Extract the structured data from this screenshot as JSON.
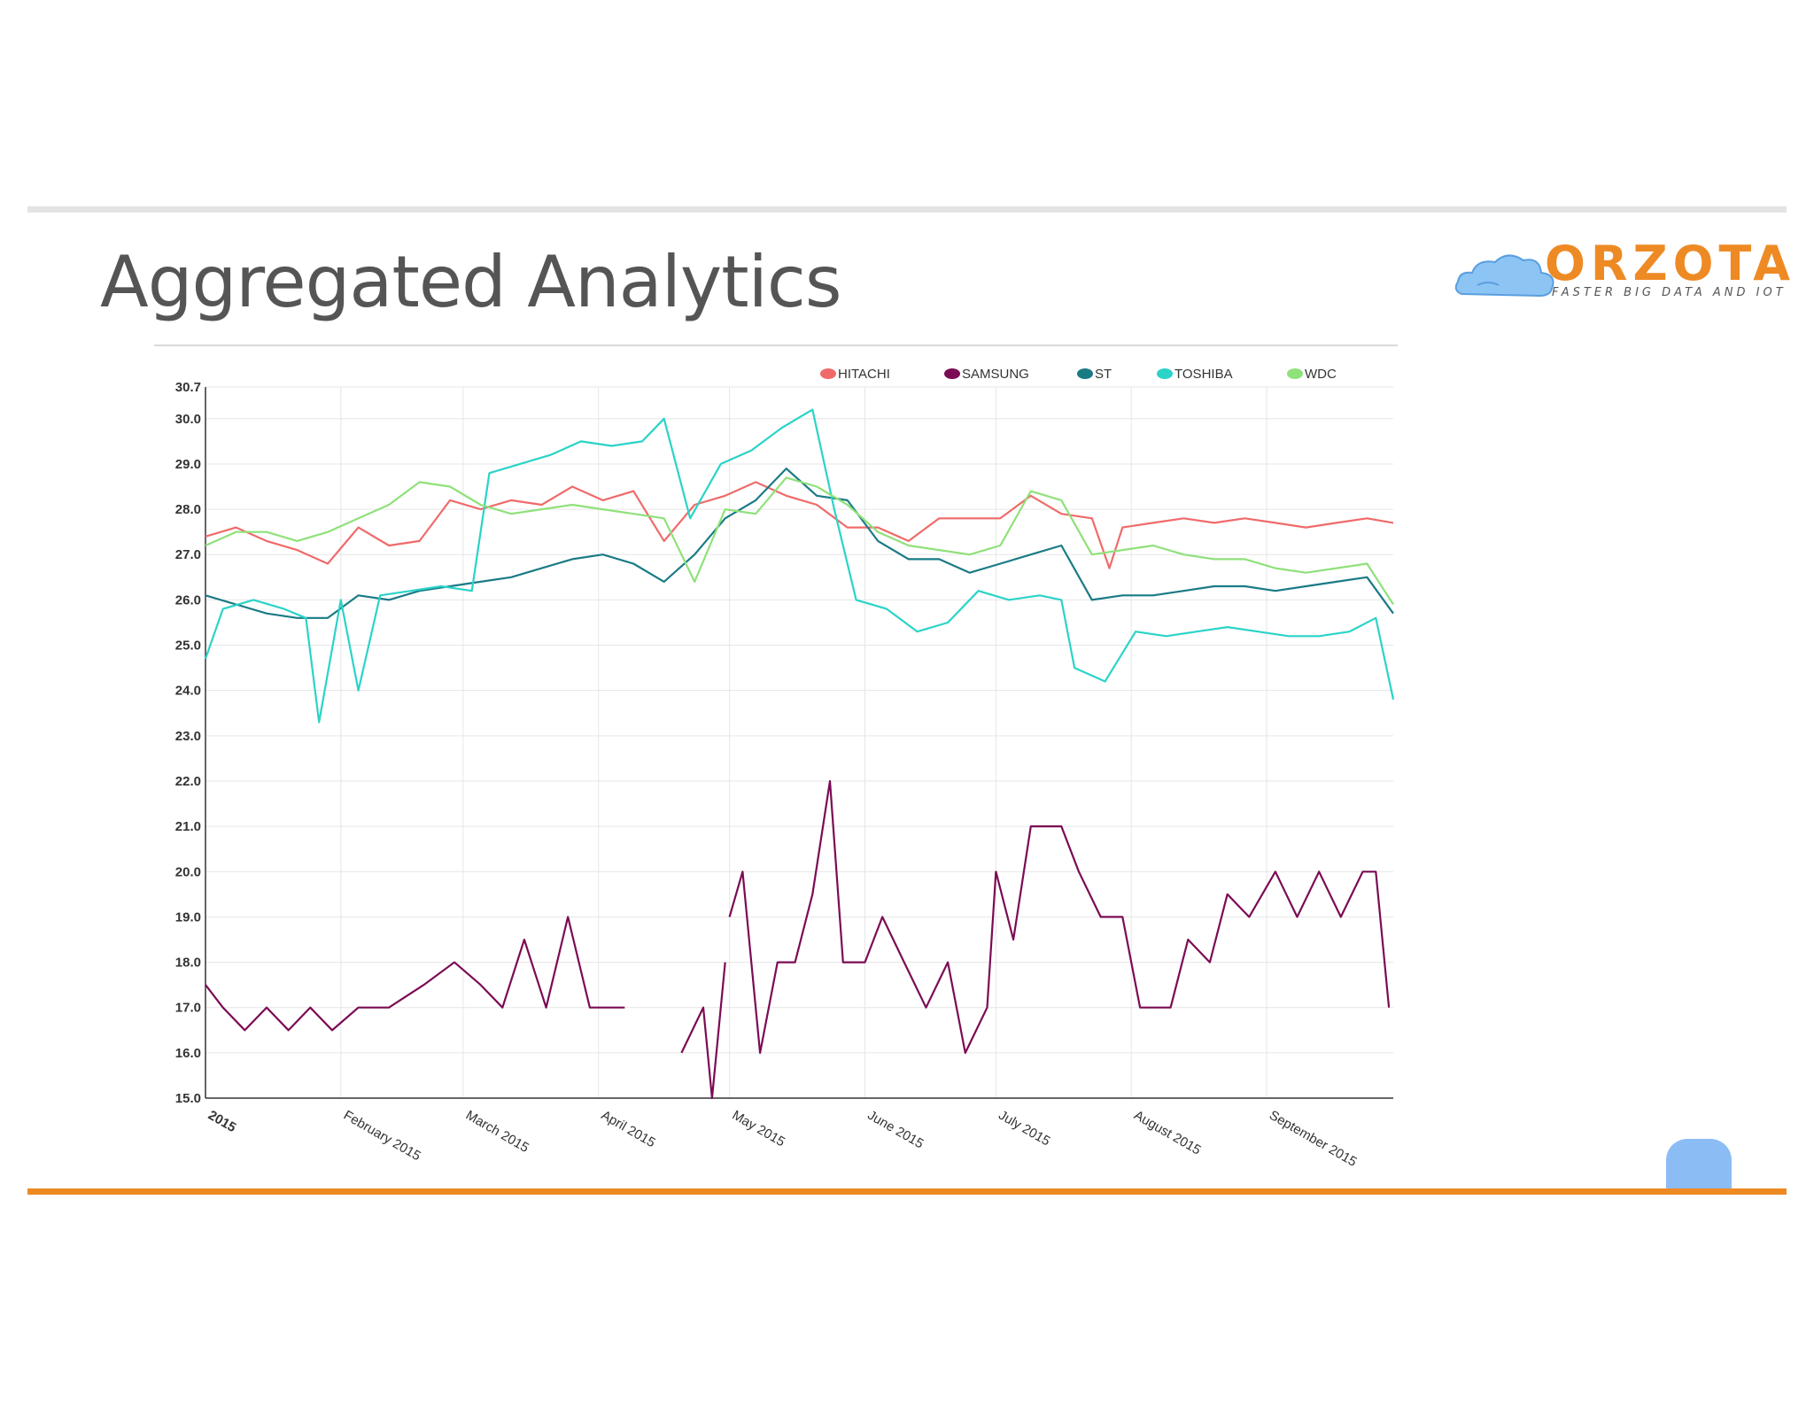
{
  "slide": {
    "title": "Aggregated Analytics",
    "logo": {
      "word": "ORZOTA",
      "tagline": "FASTER BIG DATA AND IOT"
    }
  },
  "colors": {
    "accent_orange": "#ee8a24",
    "rule_gray": "#e3e3e3"
  },
  "chart_data": {
    "type": "line",
    "title": "",
    "xlabel": "",
    "ylabel": "",
    "x_start": "2015-01-01",
    "x_end": "2015-09-30",
    "ylim": [
      15.0,
      30.7
    ],
    "yticks": [
      "15.0",
      "16.0",
      "17.0",
      "18.0",
      "19.0",
      "20.0",
      "21.0",
      "22.0",
      "23.0",
      "24.0",
      "25.0",
      "26.0",
      "27.0",
      "28.0",
      "29.0",
      "30.0",
      "30.7"
    ],
    "xticks": [
      {
        "date": "2015-01-01",
        "label": "2015"
      },
      {
        "date": "2015-02-01",
        "label": "February 2015"
      },
      {
        "date": "2015-03-01",
        "label": "March 2015"
      },
      {
        "date": "2015-04-01",
        "label": "April 2015"
      },
      {
        "date": "2015-05-01",
        "label": "May 2015"
      },
      {
        "date": "2015-06-01",
        "label": "June 2015"
      },
      {
        "date": "2015-07-01",
        "label": "July 2015"
      },
      {
        "date": "2015-08-01",
        "label": "August 2015"
      },
      {
        "date": "2015-09-01",
        "label": "September 2015"
      }
    ],
    "grid": true,
    "legend_position": "top-right",
    "series": [
      {
        "name": "HITACHI",
        "color": "#f06a6a",
        "points": [
          [
            "2015-01-01",
            27.4
          ],
          [
            "2015-01-08",
            27.6
          ],
          [
            "2015-01-15",
            27.3
          ],
          [
            "2015-01-22",
            27.1
          ],
          [
            "2015-01-29",
            26.8
          ],
          [
            "2015-02-05",
            27.6
          ],
          [
            "2015-02-12",
            27.2
          ],
          [
            "2015-02-19",
            27.3
          ],
          [
            "2015-02-26",
            28.2
          ],
          [
            "2015-03-05",
            28.0
          ],
          [
            "2015-03-12",
            28.2
          ],
          [
            "2015-03-19",
            28.1
          ],
          [
            "2015-03-26",
            28.5
          ],
          [
            "2015-04-02",
            28.2
          ],
          [
            "2015-04-09",
            28.4
          ],
          [
            "2015-04-16",
            27.3
          ],
          [
            "2015-04-23",
            28.1
          ],
          [
            "2015-04-30",
            28.3
          ],
          [
            "2015-05-07",
            28.6
          ],
          [
            "2015-05-14",
            28.3
          ],
          [
            "2015-05-21",
            28.1
          ],
          [
            "2015-05-28",
            27.6
          ],
          [
            "2015-06-04",
            27.6
          ],
          [
            "2015-06-11",
            27.3
          ],
          [
            "2015-06-18",
            27.8
          ],
          [
            "2015-06-25",
            27.8
          ],
          [
            "2015-07-02",
            27.8
          ],
          [
            "2015-07-09",
            28.3
          ],
          [
            "2015-07-16",
            27.9
          ],
          [
            "2015-07-23",
            27.8
          ],
          [
            "2015-07-27",
            26.7
          ],
          [
            "2015-07-30",
            27.6
          ],
          [
            "2015-08-06",
            27.7
          ],
          [
            "2015-08-13",
            27.8
          ],
          [
            "2015-08-20",
            27.7
          ],
          [
            "2015-08-27",
            27.8
          ],
          [
            "2015-09-03",
            27.7
          ],
          [
            "2015-09-10",
            27.6
          ],
          [
            "2015-09-17",
            27.7
          ],
          [
            "2015-09-24",
            27.8
          ],
          [
            "2015-09-30",
            27.7
          ]
        ]
      },
      {
        "name": "SAMSUNG",
        "color": "#7b0b54",
        "points": [
          [
            "2015-01-01",
            17.5
          ],
          [
            "2015-01-05",
            17.0
          ],
          [
            "2015-01-10",
            16.5
          ],
          [
            "2015-01-15",
            17.0
          ],
          [
            "2015-01-20",
            16.5
          ],
          [
            "2015-01-25",
            17.0
          ],
          [
            "2015-01-30",
            16.5
          ],
          [
            "2015-02-05",
            17.0
          ],
          [
            "2015-02-12",
            17.0
          ],
          [
            "2015-02-20",
            17.5
          ],
          [
            "2015-02-27",
            18.0
          ],
          [
            "2015-03-05",
            17.5
          ],
          [
            "2015-03-10",
            17.0
          ],
          [
            "2015-03-15",
            18.5
          ],
          [
            "2015-03-20",
            17.0
          ],
          [
            "2015-03-25",
            19.0
          ],
          [
            "2015-03-30",
            17.0
          ],
          [
            "2015-04-07",
            17.0
          ],
          null,
          [
            "2015-04-20",
            16.0
          ],
          [
            "2015-04-25",
            17.0
          ],
          [
            "2015-04-27",
            15.0
          ],
          [
            "2015-04-30",
            18.0
          ],
          null,
          [
            "2015-05-01",
            19.0
          ],
          [
            "2015-05-04",
            20.0
          ],
          [
            "2015-05-08",
            16.0
          ],
          [
            "2015-05-12",
            18.0
          ],
          [
            "2015-05-16",
            18.0
          ],
          [
            "2015-05-20",
            19.5
          ],
          [
            "2015-05-24",
            22.0
          ],
          [
            "2015-05-27",
            18.0
          ],
          [
            "2015-06-01",
            18.0
          ],
          [
            "2015-06-05",
            19.0
          ],
          [
            "2015-06-10",
            18.0
          ],
          [
            "2015-06-15",
            17.0
          ],
          [
            "2015-06-20",
            18.0
          ],
          [
            "2015-06-24",
            16.0
          ],
          [
            "2015-06-29",
            17.0
          ],
          [
            "2015-07-01",
            20.0
          ],
          [
            "2015-07-05",
            18.5
          ],
          [
            "2015-07-09",
            21.0
          ],
          [
            "2015-07-16",
            21.0
          ],
          [
            "2015-07-20",
            20.0
          ],
          [
            "2015-07-25",
            19.0
          ],
          [
            "2015-07-30",
            19.0
          ],
          [
            "2015-08-03",
            17.0
          ],
          [
            "2015-08-10",
            17.0
          ],
          [
            "2015-08-14",
            18.5
          ],
          [
            "2015-08-19",
            18.0
          ],
          [
            "2015-08-23",
            19.5
          ],
          [
            "2015-08-28",
            19.0
          ],
          [
            "2015-09-03",
            20.0
          ],
          [
            "2015-09-08",
            19.0
          ],
          [
            "2015-09-13",
            20.0
          ],
          [
            "2015-09-18",
            19.0
          ],
          [
            "2015-09-23",
            20.0
          ],
          [
            "2015-09-26",
            20.0
          ],
          [
            "2015-09-29",
            17.0
          ]
        ]
      },
      {
        "name": "ST",
        "color": "#1a7b85",
        "points": [
          [
            "2015-01-01",
            26.1
          ],
          [
            "2015-01-08",
            25.9
          ],
          [
            "2015-01-15",
            25.7
          ],
          [
            "2015-01-22",
            25.6
          ],
          [
            "2015-01-29",
            25.6
          ],
          [
            "2015-02-05",
            26.1
          ],
          [
            "2015-02-12",
            26.0
          ],
          [
            "2015-02-19",
            26.2
          ],
          [
            "2015-02-26",
            26.3
          ],
          [
            "2015-03-05",
            26.4
          ],
          [
            "2015-03-12",
            26.5
          ],
          [
            "2015-03-19",
            26.7
          ],
          [
            "2015-03-26",
            26.9
          ],
          [
            "2015-04-02",
            27.0
          ],
          [
            "2015-04-09",
            26.8
          ],
          [
            "2015-04-16",
            26.4
          ],
          [
            "2015-04-23",
            27.0
          ],
          [
            "2015-04-30",
            27.8
          ],
          [
            "2015-05-07",
            28.2
          ],
          [
            "2015-05-14",
            28.9
          ],
          [
            "2015-05-21",
            28.3
          ],
          [
            "2015-05-28",
            28.2
          ],
          [
            "2015-06-04",
            27.3
          ],
          [
            "2015-06-11",
            26.9
          ],
          [
            "2015-06-18",
            26.9
          ],
          [
            "2015-06-25",
            26.6
          ],
          [
            "2015-07-02",
            26.8
          ],
          [
            "2015-07-09",
            27.0
          ],
          [
            "2015-07-16",
            27.2
          ],
          [
            "2015-07-23",
            26.0
          ],
          [
            "2015-07-30",
            26.1
          ],
          [
            "2015-08-06",
            26.1
          ],
          [
            "2015-08-13",
            26.2
          ],
          [
            "2015-08-20",
            26.3
          ],
          [
            "2015-08-27",
            26.3
          ],
          [
            "2015-09-03",
            26.2
          ],
          [
            "2015-09-10",
            26.3
          ],
          [
            "2015-09-17",
            26.4
          ],
          [
            "2015-09-24",
            26.5
          ],
          [
            "2015-09-30",
            25.7
          ]
        ]
      },
      {
        "name": "TOSHIBA",
        "color": "#2bd3c8",
        "points": [
          [
            "2015-01-01",
            24.7
          ],
          [
            "2015-01-05",
            25.8
          ],
          [
            "2015-01-12",
            26.0
          ],
          [
            "2015-01-19",
            25.8
          ],
          [
            "2015-01-24",
            25.6
          ],
          [
            "2015-01-27",
            23.3
          ],
          [
            "2015-02-01",
            26.0
          ],
          [
            "2015-02-05",
            24.0
          ],
          [
            "2015-02-10",
            26.1
          ],
          [
            "2015-02-17",
            26.2
          ],
          [
            "2015-02-24",
            26.3
          ],
          [
            "2015-03-03",
            26.2
          ],
          [
            "2015-03-07",
            28.8
          ],
          [
            "2015-03-14",
            29.0
          ],
          [
            "2015-03-21",
            29.2
          ],
          [
            "2015-03-28",
            29.5
          ],
          [
            "2015-04-04",
            29.4
          ],
          [
            "2015-04-11",
            29.5
          ],
          [
            "2015-04-16",
            30.0
          ],
          [
            "2015-04-22",
            27.8
          ],
          [
            "2015-04-29",
            29.0
          ],
          [
            "2015-05-06",
            29.3
          ],
          [
            "2015-05-13",
            29.8
          ],
          [
            "2015-05-20",
            30.2
          ],
          [
            "2015-05-25",
            28.0
          ],
          [
            "2015-05-30",
            26.0
          ],
          [
            "2015-06-06",
            25.8
          ],
          [
            "2015-06-13",
            25.3
          ],
          [
            "2015-06-20",
            25.5
          ],
          [
            "2015-06-27",
            26.2
          ],
          [
            "2015-07-04",
            26.0
          ],
          [
            "2015-07-11",
            26.1
          ],
          [
            "2015-07-16",
            26.0
          ],
          [
            "2015-07-19",
            24.5
          ],
          [
            "2015-07-26",
            24.2
          ],
          [
            "2015-08-02",
            25.3
          ],
          [
            "2015-08-09",
            25.2
          ],
          [
            "2015-08-16",
            25.3
          ],
          [
            "2015-08-23",
            25.4
          ],
          [
            "2015-08-30",
            25.3
          ],
          [
            "2015-09-06",
            25.2
          ],
          [
            "2015-09-13",
            25.2
          ],
          [
            "2015-09-20",
            25.3
          ],
          [
            "2015-09-26",
            25.6
          ],
          [
            "2015-09-30",
            23.8
          ]
        ]
      },
      {
        "name": "WDC",
        "color": "#8fe17a",
        "points": [
          [
            "2015-01-01",
            27.2
          ],
          [
            "2015-01-08",
            27.5
          ],
          [
            "2015-01-15",
            27.5
          ],
          [
            "2015-01-22",
            27.3
          ],
          [
            "2015-01-29",
            27.5
          ],
          [
            "2015-02-05",
            27.8
          ],
          [
            "2015-02-12",
            28.1
          ],
          [
            "2015-02-19",
            28.6
          ],
          [
            "2015-02-26",
            28.5
          ],
          [
            "2015-03-05",
            28.1
          ],
          [
            "2015-03-12",
            27.9
          ],
          [
            "2015-03-19",
            28.0
          ],
          [
            "2015-03-26",
            28.1
          ],
          [
            "2015-04-02",
            28.0
          ],
          [
            "2015-04-09",
            27.9
          ],
          [
            "2015-04-16",
            27.8
          ],
          [
            "2015-04-23",
            26.4
          ],
          [
            "2015-04-30",
            28.0
          ],
          [
            "2015-05-07",
            27.9
          ],
          [
            "2015-05-14",
            28.7
          ],
          [
            "2015-05-21",
            28.5
          ],
          [
            "2015-05-28",
            28.1
          ],
          [
            "2015-06-04",
            27.5
          ],
          [
            "2015-06-11",
            27.2
          ],
          [
            "2015-06-18",
            27.1
          ],
          [
            "2015-06-25",
            27.0
          ],
          [
            "2015-07-02",
            27.2
          ],
          [
            "2015-07-09",
            28.4
          ],
          [
            "2015-07-16",
            28.2
          ],
          [
            "2015-07-23",
            27.0
          ],
          [
            "2015-07-30",
            27.1
          ],
          [
            "2015-08-06",
            27.2
          ],
          [
            "2015-08-13",
            27.0
          ],
          [
            "2015-08-20",
            26.9
          ],
          [
            "2015-08-27",
            26.9
          ],
          [
            "2015-09-03",
            26.7
          ],
          [
            "2015-09-10",
            26.6
          ],
          [
            "2015-09-17",
            26.7
          ],
          [
            "2015-09-24",
            26.8
          ],
          [
            "2015-09-30",
            25.9
          ]
        ]
      }
    ]
  }
}
